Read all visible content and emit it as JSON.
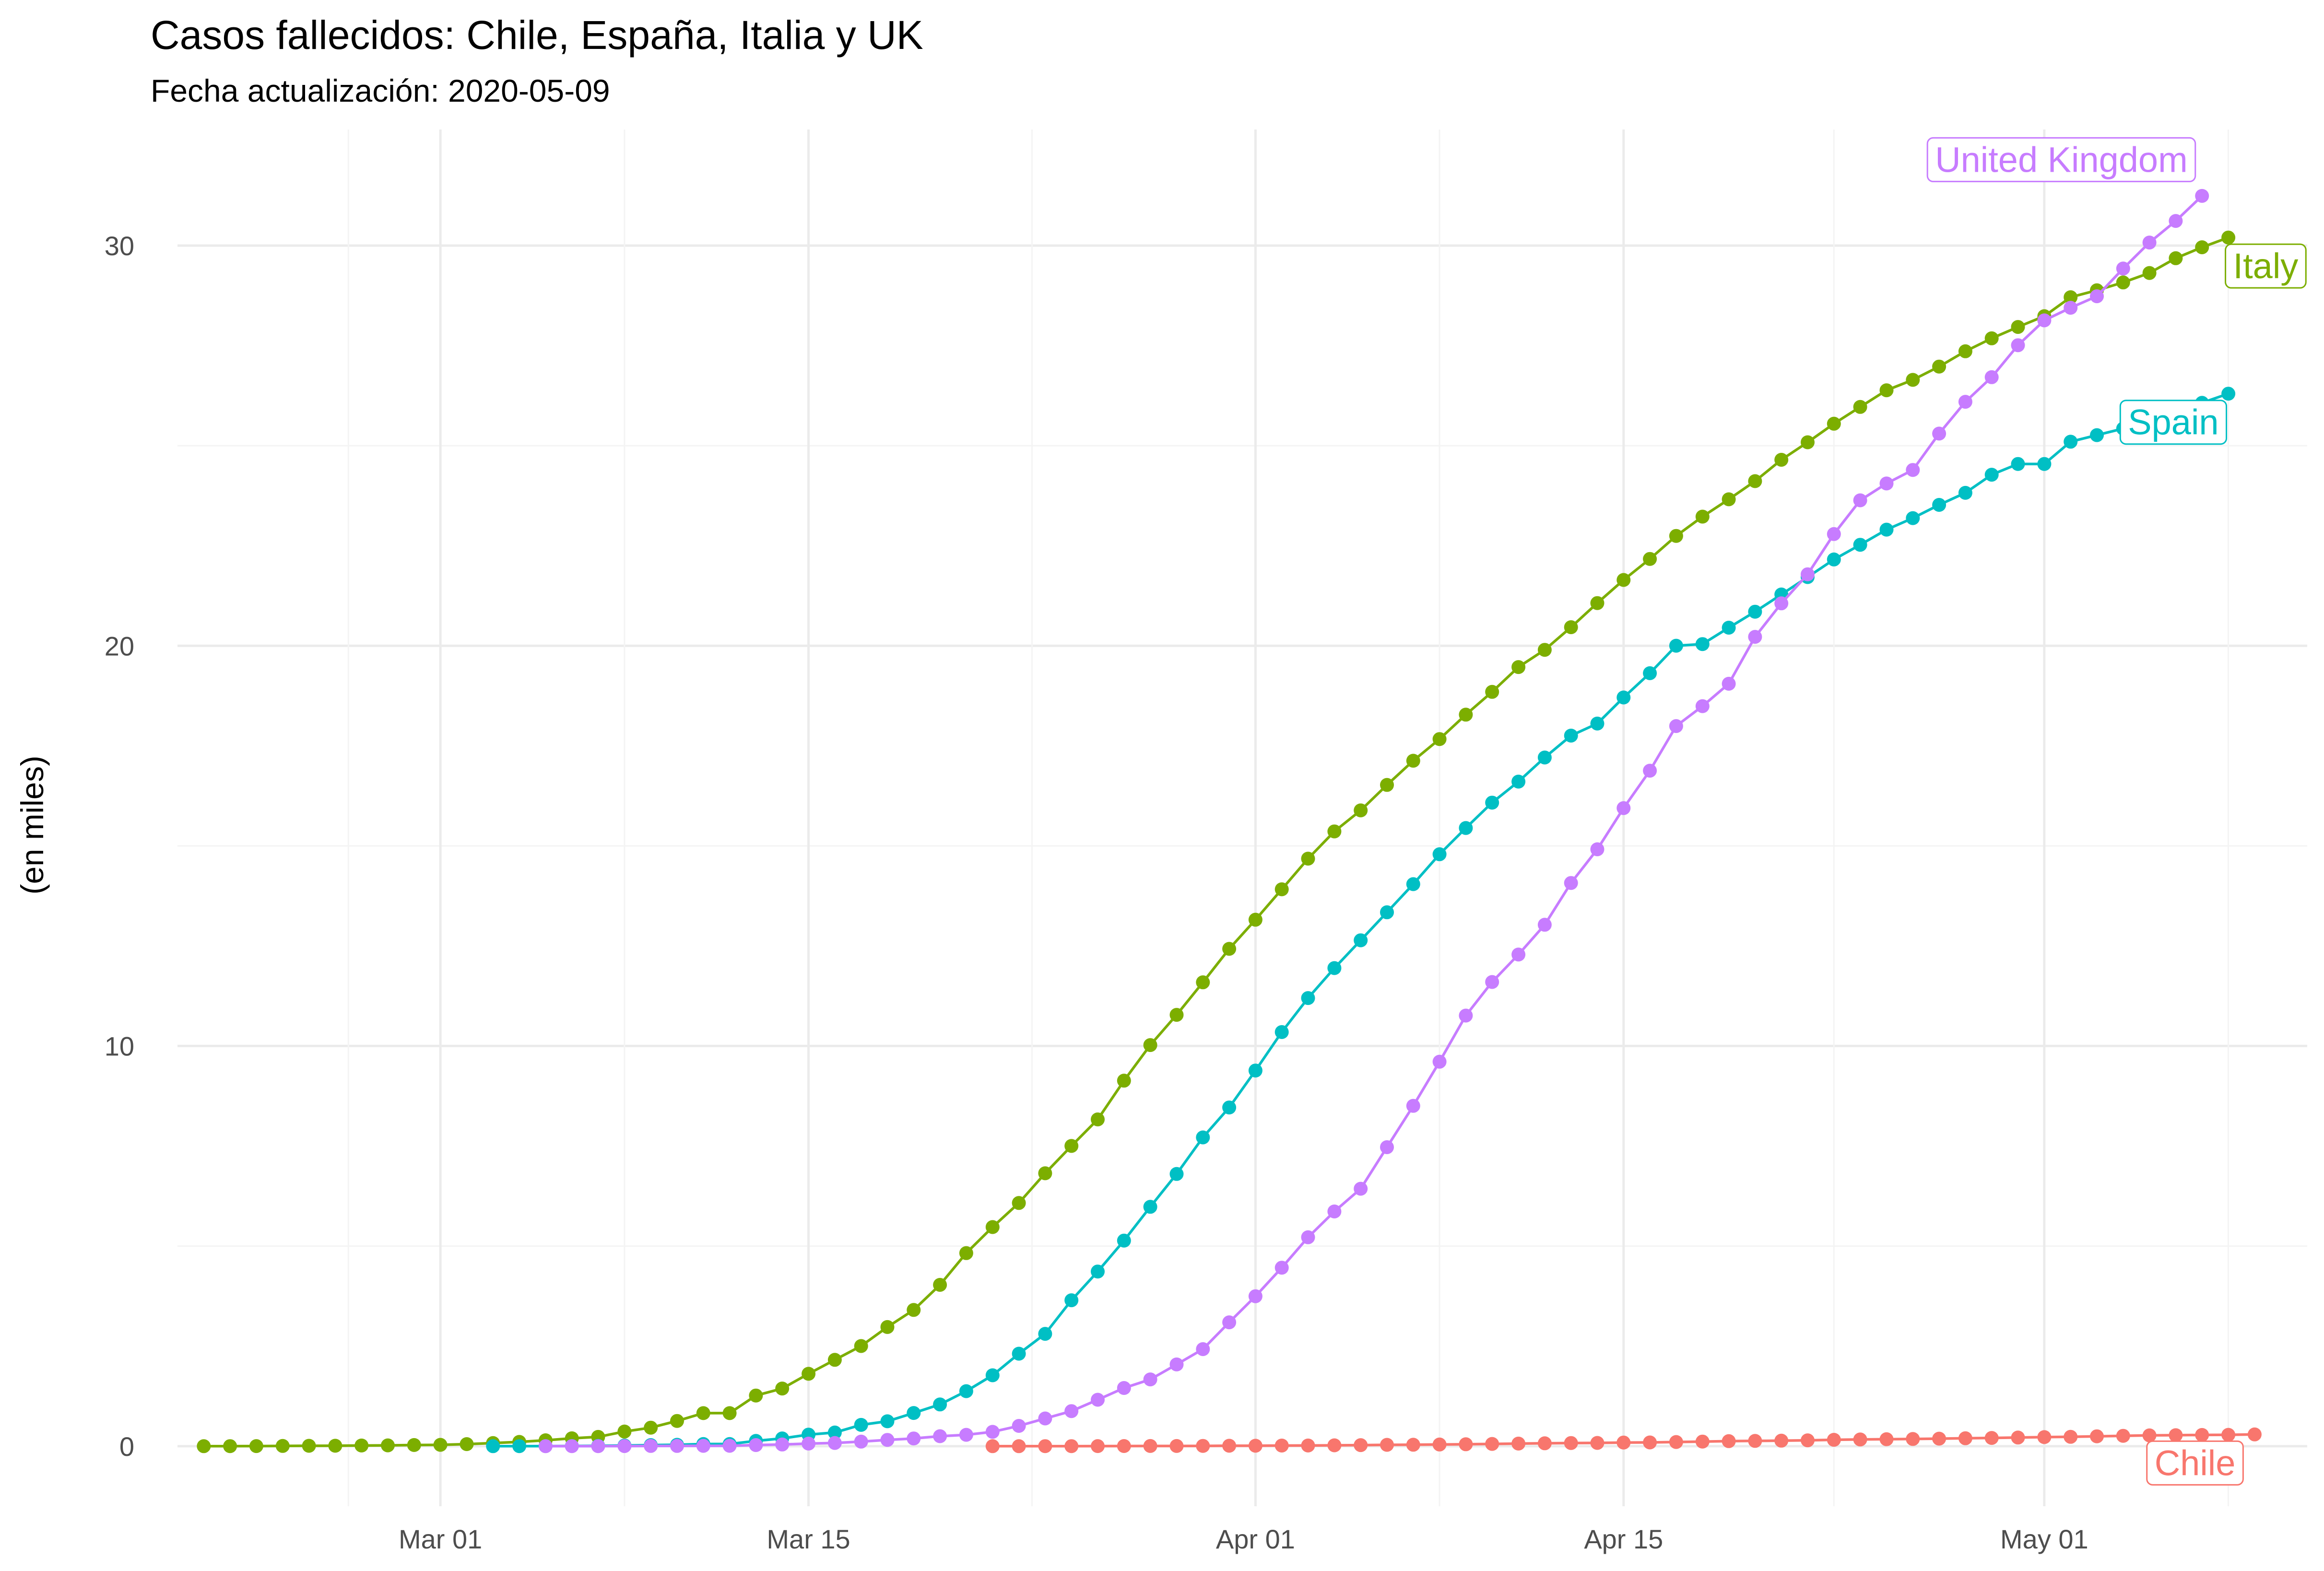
{
  "chart_data": {
    "type": "line",
    "title": "Casos fallecidos: Chile, España, Italia y UK",
    "subtitle": "Fecha actualización: 2020-05-09",
    "xlabel": "",
    "ylabel": "(en miles)",
    "x_ticks": [
      {
        "date": "2020-03-01",
        "label": "Mar 01"
      },
      {
        "date": "2020-03-15",
        "label": "Mar 15"
      },
      {
        "date": "2020-04-01",
        "label": "Apr 01"
      },
      {
        "date": "2020-04-15",
        "label": "Apr 15"
      },
      {
        "date": "2020-05-01",
        "label": "May 01"
      }
    ],
    "y_ticks": [
      0,
      10,
      20,
      30
    ],
    "ylim": [
      -1.5,
      32.9
    ],
    "xlim": [
      "2020-02-20",
      "2020-05-11"
    ],
    "grid": true,
    "legend": "none",
    "series": [
      {
        "name": "Italy",
        "color": "#7CAE00",
        "start": "2020-02-21",
        "values": [
          0.001,
          0.002,
          0.003,
          0.007,
          0.01,
          0.012,
          0.017,
          0.021,
          0.029,
          0.034,
          0.052,
          0.079,
          0.107,
          0.148,
          0.197,
          0.233,
          0.366,
          0.463,
          0.631,
          0.827,
          0.827,
          1.266,
          1.441,
          1.809,
          2.158,
          2.503,
          2.978,
          3.405,
          4.032,
          4.825,
          5.476,
          6.077,
          6.82,
          7.503,
          8.165,
          9.134,
          10.023,
          10.779,
          11.591,
          12.428,
          13.155,
          13.915,
          14.681,
          15.362,
          15.887,
          16.523,
          17.127,
          17.669,
          18.279,
          18.849,
          19.468,
          19.899,
          20.465,
          21.067,
          21.645,
          22.17,
          22.745,
          23.227,
          23.66,
          24.114,
          24.648,
          25.085,
          25.549,
          25.969,
          26.384,
          26.644,
          26.977,
          27.359,
          27.682,
          27.967,
          28.236,
          28.71,
          28.884,
          29.079,
          29.315,
          29.684,
          29.958,
          30.201
        ]
      },
      {
        "name": "Spain",
        "color": "#00BFC4",
        "start": "2020-03-03",
        "values": [
          0.001,
          0.002,
          0.003,
          0.005,
          0.01,
          0.017,
          0.028,
          0.035,
          0.054,
          0.055,
          0.133,
          0.195,
          0.289,
          0.342,
          0.533,
          0.623,
          0.83,
          1.043,
          1.375,
          1.772,
          2.311,
          2.808,
          3.647,
          4.365,
          5.138,
          5.982,
          6.803,
          7.716,
          8.464,
          9.387,
          10.348,
          11.198,
          11.947,
          12.641,
          13.341,
          14.045,
          14.792,
          15.447,
          16.081,
          16.606,
          17.209,
          17.756,
          18.056,
          18.708,
          19.315,
          20.002,
          20.043,
          20.453,
          20.852,
          21.282,
          21.717,
          22.157,
          22.524,
          22.902,
          23.19,
          23.521,
          23.822,
          24.275,
          24.543,
          24.543,
          25.1,
          25.264,
          25.428,
          25.613,
          25.857,
          26.07,
          26.299
        ]
      },
      {
        "name": "United Kingdom",
        "color": "#C77CFF",
        "start": "2020-03-05",
        "values": [
          0.001,
          0.002,
          0.002,
          0.003,
          0.007,
          0.007,
          0.009,
          0.01,
          0.028,
          0.043,
          0.065,
          0.081,
          0.115,
          0.158,
          0.194,
          0.25,
          0.285,
          0.359,
          0.508,
          0.694,
          0.877,
          1.161,
          1.455,
          1.669,
          2.043,
          2.425,
          3.095,
          3.747,
          4.461,
          5.221,
          5.865,
          6.433,
          7.471,
          8.505,
          9.608,
          10.76,
          11.599,
          12.285,
          13.029,
          14.073,
          14.915,
          15.944,
          16.879,
          17.994,
          18.492,
          19.051,
          20.223,
          21.06,
          21.787,
          22.792,
          23.635,
          24.055,
          24.393,
          25.302,
          26.097,
          26.711,
          27.51,
          28.131,
          28.446,
          28.734,
          29.427,
          30.076,
          30.615,
          31.241
        ]
      },
      {
        "name": "Chile",
        "color": "#F8766D",
        "start": "2020-03-22",
        "values": [
          0.001,
          0.001,
          0.002,
          0.002,
          0.003,
          0.004,
          0.005,
          0.006,
          0.008,
          0.011,
          0.012,
          0.016,
          0.018,
          0.022,
          0.027,
          0.034,
          0.037,
          0.043,
          0.048,
          0.057,
          0.065,
          0.073,
          0.08,
          0.082,
          0.092,
          0.094,
          0.105,
          0.116,
          0.126,
          0.133,
          0.139,
          0.147,
          0.16,
          0.168,
          0.174,
          0.181,
          0.189,
          0.198,
          0.207,
          0.216,
          0.227,
          0.234,
          0.247,
          0.26,
          0.27,
          0.275,
          0.281,
          0.285,
          0.294
        ]
      }
    ],
    "annotations": [
      {
        "text": "United Kingdom",
        "series": "United Kingdom"
      },
      {
        "text": "Italy",
        "series": "Italy"
      },
      {
        "text": "Spain",
        "series": "Spain"
      },
      {
        "text": "Chile",
        "series": "Chile"
      }
    ]
  }
}
